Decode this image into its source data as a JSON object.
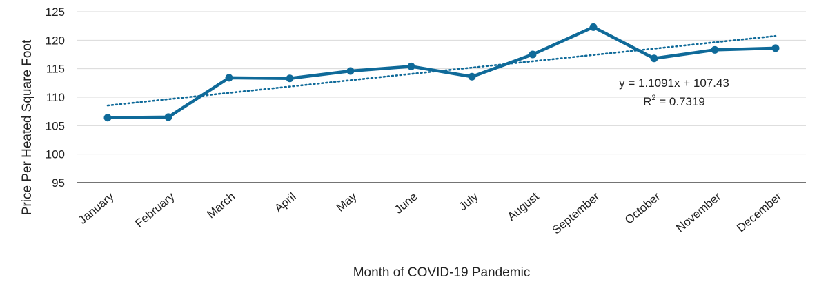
{
  "chart_data": {
    "type": "line",
    "title": "",
    "xlabel": "Month of COVID-19 Pandemic",
    "ylabel": "Price Per Heated Square Foot",
    "categories": [
      "January",
      "February",
      "March",
      "April",
      "May",
      "June",
      "July",
      "August",
      "September",
      "October",
      "November",
      "December"
    ],
    "series": [
      {
        "values": [
          106.4,
          106.5,
          113.4,
          113.3,
          114.6,
          115.4,
          113.6,
          117.5,
          122.3,
          116.8,
          118.3,
          118.6
        ]
      }
    ],
    "trendline": {
      "type": "linear",
      "slope": 1.1091,
      "intercept": 107.43
    },
    "annotations": {
      "equation": "y = 1.1091x + 107.43",
      "r_squared_prefix": "R",
      "r_squared_exponent": "2",
      "r_squared_value": " = 0.7319"
    },
    "ylim": [
      95,
      125
    ],
    "yticks": [
      95,
      100,
      105,
      110,
      115,
      120,
      125
    ],
    "grid": true,
    "legend": "none",
    "colors": {
      "series": "#0f6a99",
      "trend": "#0f6a99",
      "grid": "#d9d9d9",
      "axis": "#222222"
    }
  }
}
